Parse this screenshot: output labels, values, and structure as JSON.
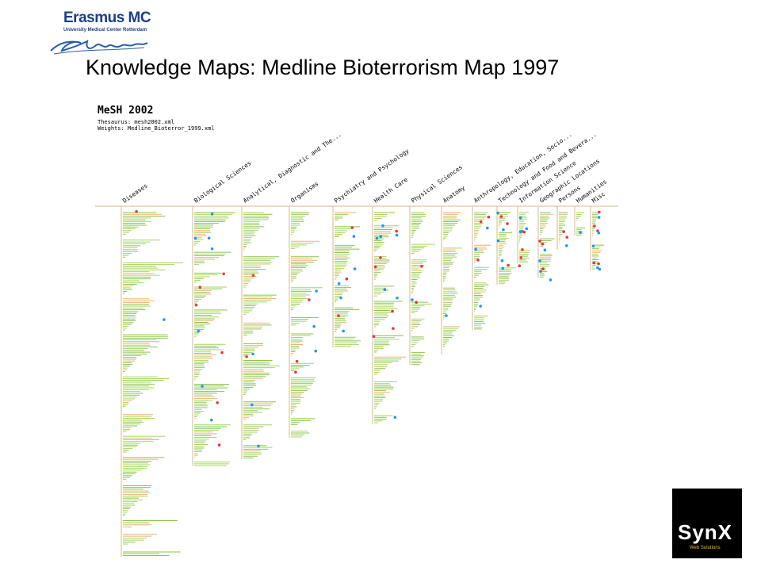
{
  "logo": {
    "brand": "Erasmus MC",
    "subtitle": "University Medical Center Rotterdam",
    "script": "Erasmus"
  },
  "slide_title": "Knowledge Maps: Medline Bioterrorism Map 1997",
  "map_header": {
    "heading": "MeSH 2002",
    "thesaurus": "Thesaurus: mesh2002.xml",
    "weights": "Weights: Medline_Bioterror_1999.xml"
  },
  "categories": [
    {
      "label": "Diseases",
      "depth": 1.0,
      "dots": 0.15
    },
    {
      "label": "Biological Sciences",
      "depth": 0.74,
      "dots": 0.9
    },
    {
      "label": "Analytical, Diagnostic and The...",
      "depth": 0.72,
      "dots": 0.35
    },
    {
      "label": "Organisms",
      "depth": 0.66,
      "dots": 0.45
    },
    {
      "label": "Psychiatry and Psychology",
      "depth": 0.4,
      "dots": 0.55
    },
    {
      "label": "Health Care",
      "depth": 0.62,
      "dots": 0.9
    },
    {
      "label": "Physical Sciences",
      "depth": 0.45,
      "dots": 0.2
    },
    {
      "label": "Anatomy",
      "depth": 0.42,
      "dots": 0.1
    },
    {
      "label": "Anthropology, Education, Socio...",
      "depth": 0.35,
      "dots": 0.4
    },
    {
      "label": "Technology and Food and Bevera...",
      "depth": 0.22,
      "dots": 0.6
    },
    {
      "label": "Information Science",
      "depth": 0.16,
      "dots": 0.6
    },
    {
      "label": "Geographic Locations",
      "depth": 0.2,
      "dots": 0.5
    },
    {
      "label": "Persons",
      "depth": 0.12,
      "dots": 0.2
    },
    {
      "label": "Humanities",
      "depth": 0.08,
      "dots": 0.1
    },
    {
      "label": "Misc",
      "depth": 0.18,
      "dots": 0.7
    }
  ],
  "colors": {
    "branch": "#8bc34a",
    "branch_light": "#a4d65e",
    "line": "#d9b98a",
    "accent_blue": "#2196f3",
    "accent_red": "#e53935",
    "orange": "#f0b070"
  },
  "corner_logo": {
    "word": "SynX",
    "tagline": "Web Solutions"
  }
}
